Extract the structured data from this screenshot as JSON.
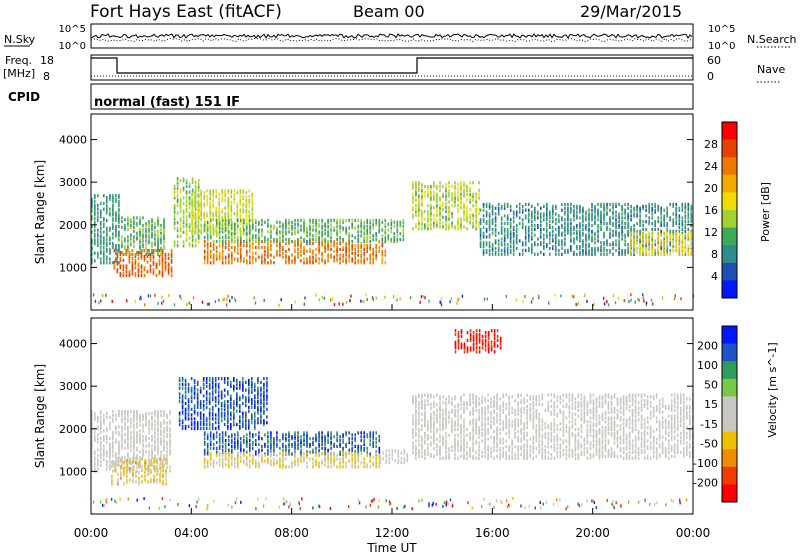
{
  "header": {
    "station": "Fort Hays East (fitACF)",
    "beam": "Beam 00",
    "date": "29/Mar/2015"
  },
  "noise_panel": {
    "left_label": "N.Sky",
    "right_label": "N.Search",
    "left_ticks": [
      "10^5",
      "10^0"
    ],
    "right_ticks": [
      "10^5",
      "10^0"
    ]
  },
  "freq_panel": {
    "left_label_1": "Freq.",
    "left_label_2": "[MHz]",
    "left_ticks": [
      "18",
      "8"
    ],
    "right_label": "Nave",
    "right_ticks": [
      "60",
      "0"
    ]
  },
  "cpid_panel": {
    "label": "CPID",
    "program": "normal (fast) 151 IF"
  },
  "axes": {
    "ylabel": "Slant Range [km]",
    "xlabel": "Time UT",
    "y_ticks": [
      "1000",
      "2000",
      "3000",
      "4000"
    ],
    "x_ticks": [
      "00:00",
      "04:00",
      "08:00",
      "12:00",
      "16:00",
      "20:00",
      "00:00"
    ]
  },
  "colors": {
    "power": [
      "#0018ff",
      "#1e50b4",
      "#2e8c8c",
      "#3caa5a",
      "#a0d232",
      "#f0dc00",
      "#f5aa00",
      "#f07800",
      "#e64100",
      "#ff0000"
    ],
    "velocity": [
      "#ff0000",
      "#f03c00",
      "#f08c00",
      "#f0c000",
      "#c8c8c0",
      "#c8c8c0",
      "#78c846",
      "#2e9c5a",
      "#1e50c8",
      "#0018ff"
    ]
  },
  "chart_data": [
    {
      "type": "heatmap",
      "name": "power",
      "xlabel": "Time UT",
      "ylabel": "Slant Range [km]",
      "xlim": [
        0,
        24
      ],
      "ylim": [
        0,
        4600
      ],
      "colorbar": {
        "label": "Power [dB]",
        "ticks": [
          "28",
          "24",
          "20",
          "16",
          "12",
          "8",
          "4"
        ],
        "range": [
          0,
          30
        ]
      },
      "regions": [
        {
          "t0": 0.0,
          "t1": 1.2,
          "r_lo": 1100,
          "r_hi": 2700,
          "v": 9
        },
        {
          "t0": 0.9,
          "t1": 3.2,
          "r_lo": 800,
          "r_hi": 1400,
          "v": 24
        },
        {
          "t0": 1.2,
          "t1": 3.0,
          "r_lo": 1300,
          "r_hi": 2200,
          "v": 11
        },
        {
          "t0": 3.3,
          "t1": 4.3,
          "r_lo": 1500,
          "r_hi": 3100,
          "v": 13
        },
        {
          "t0": 4.0,
          "t1": 6.5,
          "r_lo": 1800,
          "r_hi": 2800,
          "v": 15
        },
        {
          "t0": 4.5,
          "t1": 11.8,
          "r_lo": 1100,
          "r_hi": 1600,
          "v": 23
        },
        {
          "t0": 4.5,
          "t1": 12.5,
          "r_lo": 1600,
          "r_hi": 2100,
          "v": 11
        },
        {
          "t0": 12.8,
          "t1": 15.5,
          "r_lo": 1900,
          "r_hi": 3000,
          "v": 14
        },
        {
          "t0": 15.5,
          "t1": 24.0,
          "r_lo": 1300,
          "r_hi": 2500,
          "v": 8
        },
        {
          "t0": 21.5,
          "t1": 24.0,
          "r_lo": 1300,
          "r_hi": 1800,
          "v": 17
        }
      ]
    },
    {
      "type": "heatmap",
      "name": "velocity",
      "xlabel": "Time UT",
      "ylabel": "Slant Range [km]",
      "xlim": [
        0,
        24
      ],
      "ylim": [
        0,
        4600
      ],
      "colorbar": {
        "label": "Velocity [m s^-1]",
        "ticks": [
          "200",
          "100",
          "50",
          "15",
          "-15",
          "-50",
          "-100",
          "-200"
        ],
        "range": [
          -250,
          250
        ]
      },
      "regions": [
        {
          "t0": 0.0,
          "t1": 3.2,
          "r_lo": 1000,
          "r_hi": 2400,
          "v": 0
        },
        {
          "t0": 0.8,
          "t1": 3.0,
          "r_lo": 700,
          "r_hi": 1300,
          "v": -60
        },
        {
          "t0": 3.5,
          "t1": 7.0,
          "r_lo": 2000,
          "r_hi": 3200,
          "v": 180
        },
        {
          "t0": 4.5,
          "t1": 11.5,
          "r_lo": 1400,
          "r_hi": 1900,
          "v": 170
        },
        {
          "t0": 4.5,
          "t1": 11.5,
          "r_lo": 1100,
          "r_hi": 1450,
          "v": -50
        },
        {
          "t0": 11.5,
          "t1": 12.6,
          "r_lo": 1200,
          "r_hi": 1500,
          "v": 0
        },
        {
          "t0": 12.8,
          "t1": 24.0,
          "r_lo": 1300,
          "r_hi": 2800,
          "v": 0
        },
        {
          "t0": 14.5,
          "t1": 16.3,
          "r_lo": 3800,
          "r_hi": 4300,
          "v": -220
        }
      ]
    }
  ]
}
